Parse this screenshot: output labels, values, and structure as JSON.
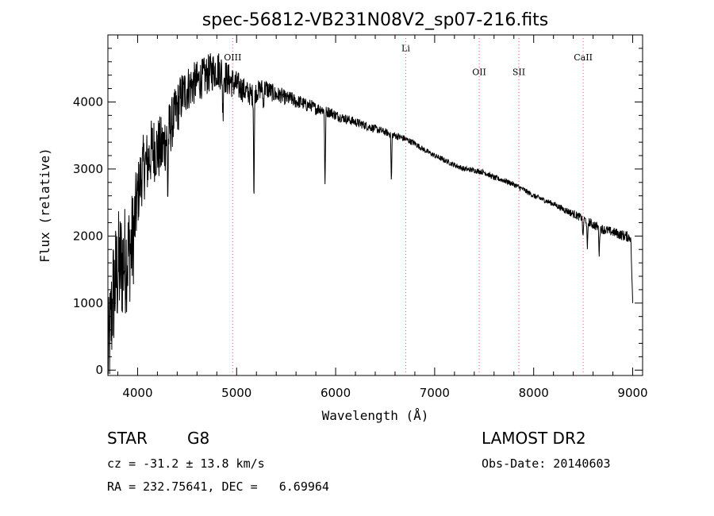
{
  "chart_data": {
    "type": "line",
    "title": "spec-56812-VB231N08V2_sp07-216.fits",
    "xlabel": "Wavelength (Å)",
    "ylabel": "Flux (relative)",
    "xlim": [
      3700,
      9100
    ],
    "ylim": [
      -80,
      5000
    ],
    "xticks": [
      4000,
      5000,
      6000,
      7000,
      8000,
      9000
    ],
    "yticks": [
      0,
      1000,
      2000,
      3000,
      4000
    ],
    "grid": false,
    "series": [
      {
        "name": "spectrum",
        "color": "#000000",
        "x": [
          3700,
          3750,
          3800,
          3850,
          3900,
          3950,
          4000,
          4050,
          4100,
          4150,
          4200,
          4250,
          4300,
          4350,
          4400,
          4450,
          4500,
          4550,
          4600,
          4650,
          4700,
          4750,
          4800,
          4850,
          4900,
          4950,
          5000,
          5050,
          5100,
          5150,
          5200,
          5250,
          5300,
          5350,
          5400,
          5450,
          5500,
          5550,
          5600,
          5650,
          5700,
          5750,
          5800,
          5850,
          5900,
          5950,
          6000,
          6100,
          6200,
          6300,
          6400,
          6500,
          6600,
          6700,
          6800,
          6900,
          7000,
          7100,
          7200,
          7300,
          7400,
          7500,
          7600,
          7700,
          7800,
          7900,
          8000,
          8100,
          8200,
          8300,
          8400,
          8500,
          8600,
          8700,
          8800,
          8900,
          8980,
          9000
        ],
        "y": [
          0,
          1100,
          1500,
          1600,
          1700,
          1900,
          2600,
          3000,
          3100,
          3300,
          3300,
          3300,
          3500,
          3700,
          3900,
          4100,
          4200,
          4250,
          4300,
          4350,
          4400,
          4450,
          4500,
          4450,
          4350,
          4300,
          4250,
          4200,
          4150,
          4100,
          4150,
          4200,
          4200,
          4150,
          4100,
          4100,
          4050,
          4050,
          4000,
          4000,
          3950,
          3950,
          3900,
          3900,
          3850,
          3850,
          3800,
          3750,
          3700,
          3650,
          3600,
          3550,
          3500,
          3450,
          3380,
          3280,
          3200,
          3130,
          3060,
          3000,
          2980,
          2950,
          2870,
          2830,
          2770,
          2690,
          2600,
          2540,
          2480,
          2400,
          2330,
          2260,
          2170,
          2100,
          2060,
          2010,
          1980,
          1000
        ],
        "noise": [
          900,
          900,
          900,
          900,
          800,
          800,
          500,
          500,
          500,
          500,
          500,
          500,
          450,
          400,
          400,
          380,
          350,
          330,
          320,
          300,
          300,
          300,
          300,
          280,
          260,
          240,
          220,
          200,
          180,
          170,
          160,
          150,
          150,
          140,
          130,
          120,
          110,
          110,
          100,
          100,
          100,
          90,
          90,
          90,
          90,
          80,
          80,
          70,
          70,
          65,
          60,
          55,
          55,
          50,
          45,
          40,
          40,
          40,
          40,
          40,
          40,
          40,
          40,
          40,
          40,
          40,
          40,
          40,
          40,
          50,
          60,
          60,
          70,
          70,
          70,
          80,
          80,
          0
        ]
      }
    ],
    "absorption_features": [
      {
        "x": 4305,
        "depth": 900
      },
      {
        "x": 4861,
        "depth": 600
      },
      {
        "x": 5175,
        "depth": 1500
      },
      {
        "x": 5270,
        "depth": 300
      },
      {
        "x": 5893,
        "depth": 1100
      },
      {
        "x": 6563,
        "depth": 700
      },
      {
        "x": 8498,
        "depth": 300
      },
      {
        "x": 8542,
        "depth": 450
      },
      {
        "x": 8662,
        "depth": 400
      }
    ],
    "line_markers": [
      {
        "label": "OIII",
        "x": 4960,
        "label_y": 4620
      },
      {
        "label": "Li",
        "x": 6708,
        "label_y": 4760
      },
      {
        "label": "OII",
        "x": 7450,
        "label_y": 4400
      },
      {
        "label": "SII",
        "x": 7850,
        "label_y": 4400
      },
      {
        "label": "CaII",
        "x": 8500,
        "label_y": 4620
      }
    ],
    "marker_color": "#e06060"
  },
  "info": {
    "object_class": "STAR",
    "subclass": "G8",
    "survey": "LAMOST DR2",
    "cz": "cz = -31.2 ± 13.8 km/s",
    "obs_date": "Obs-Date: 20140603",
    "coords": "RA = 232.75641, DEC =   6.69964"
  }
}
